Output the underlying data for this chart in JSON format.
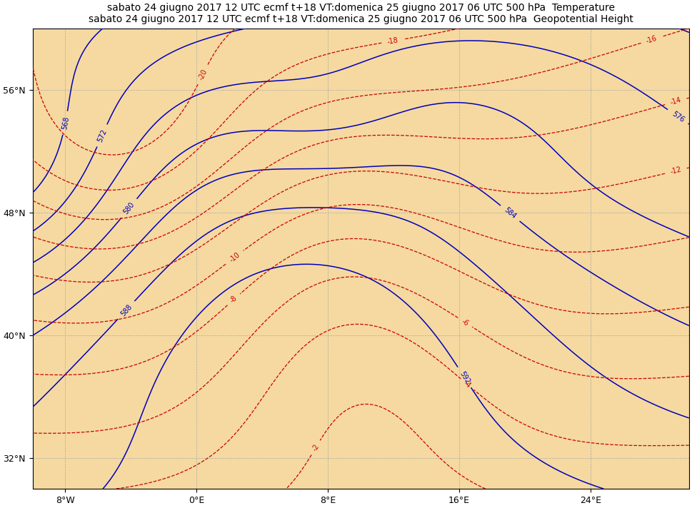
{
  "title_line1": "sabato 24 giugno 2017 12 UTC ecmf t+18 VT:domenica 25 giugno 2017 06 UTC 500 hPa  Temperature",
  "title_line2": "sabato 24 giugno 2017 12 UTC ecmf t+18 VT:domenica 25 giugno 2017 06 UTC 500 hPa  Geopotential Height",
  "lon_min": -10,
  "lon_max": 30,
  "lat_min": 30,
  "lat_max": 60,
  "xticks": [
    -8,
    0,
    8,
    16,
    24
  ],
  "xtick_labels": [
    "8°W",
    "0°E",
    "8°E",
    "16°E",
    "24°E"
  ],
  "yticks": [
    32,
    40,
    48,
    56
  ],
  "ytick_labels": [
    "32°N",
    "40°N",
    "48°N",
    "56°N"
  ],
  "background_land": "#f5d9a0",
  "background_sea": "#ffffff",
  "contour_blue_color": "#0000bb",
  "contour_red_color": "#cc0000",
  "title_fontsize": 10,
  "grid_color": "#aaaaaa",
  "coast_color": "#000000"
}
